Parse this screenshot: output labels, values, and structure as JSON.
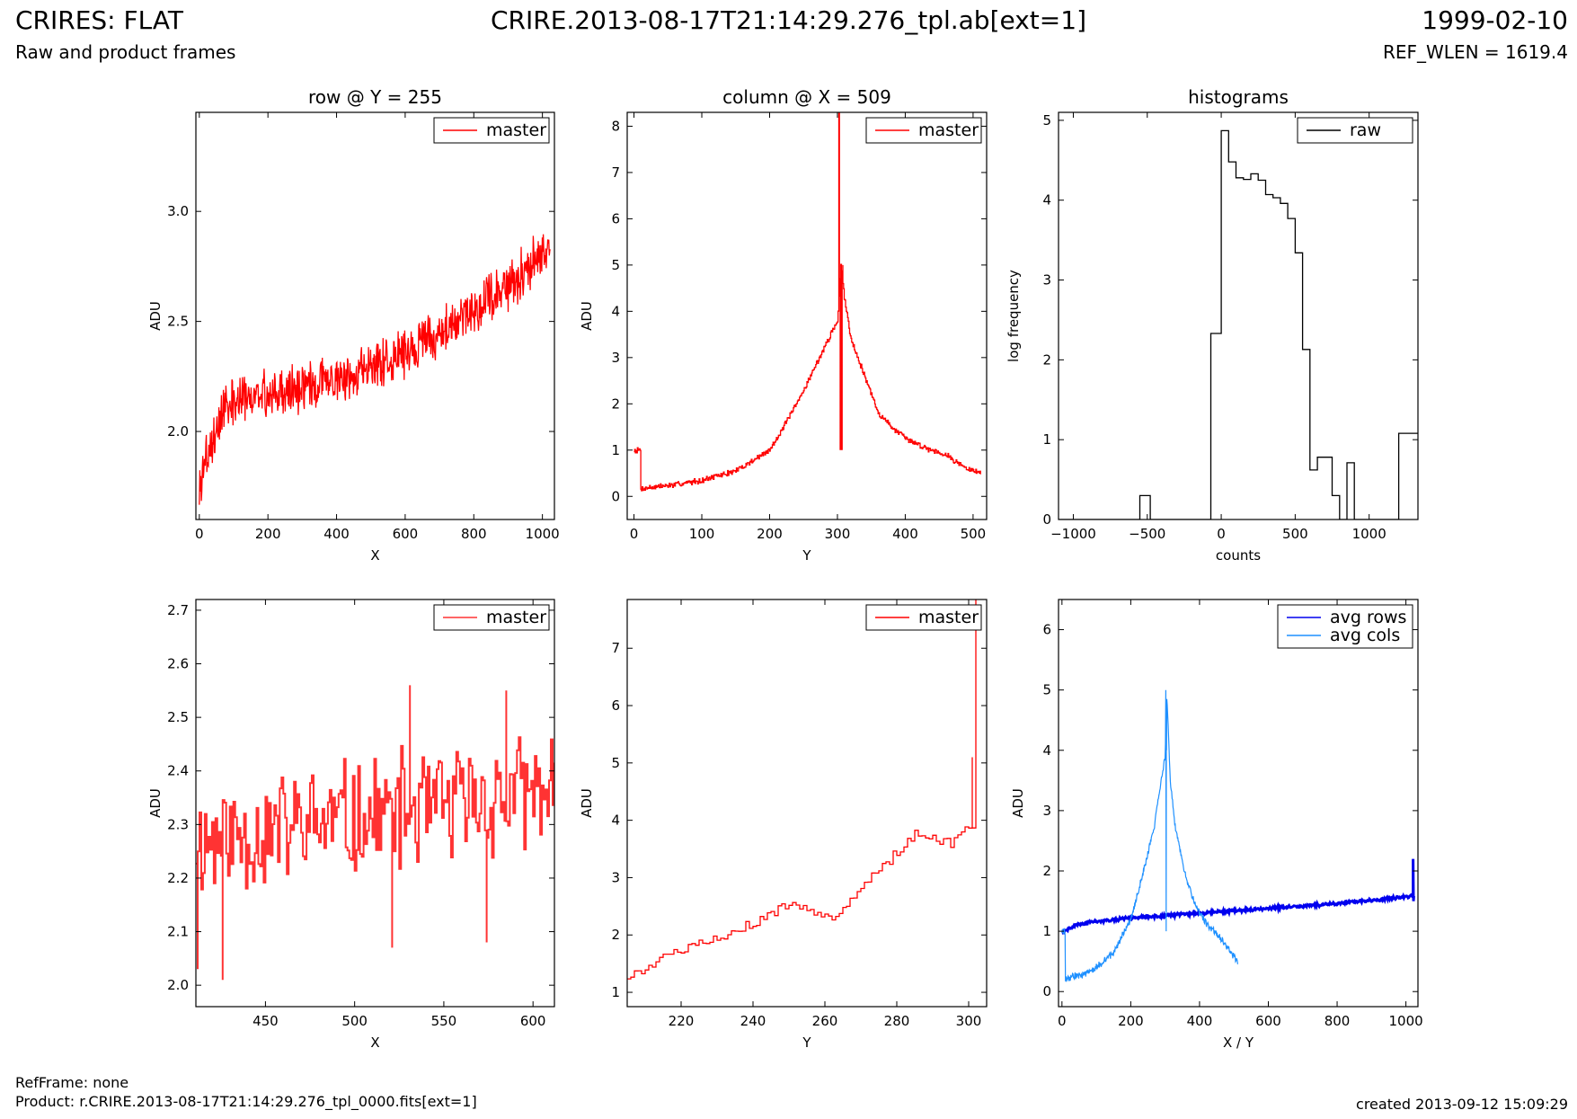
{
  "header": {
    "title": "CRIRES: FLAT",
    "subtitle": "Raw and product frames",
    "file": "CRIRE.2013-08-17T21:14:29.276_tpl.ab[ext=1]",
    "date": "1999-02-10",
    "ref_wlen": "REF_WLEN = 1619.4"
  },
  "footer": {
    "ref_frame": "RefFrame: none",
    "product": "Product: r.CRIRE.2013-08-17T21:14:29.276_tpl_0000.fits[ext=1]",
    "created": "created 2013-09-12 15:09:29"
  },
  "colors": {
    "master": "#ff0000",
    "master_zoom": "#ff3333",
    "raw": "#000000",
    "avg_rows": "#0000ee",
    "avg_cols": "#1e90ff"
  },
  "chart_data": [
    {
      "type": "line",
      "title": "row @ Y = 255",
      "xlabel": "X",
      "ylabel": "ADU",
      "xlim": [
        -10,
        1035
      ],
      "ylim": [
        1.6,
        3.45
      ],
      "xticks": [
        0,
        200,
        400,
        600,
        800,
        1000
      ],
      "yticks": [
        2.0,
        2.5,
        3.0
      ],
      "legend": "top-right",
      "grid": false,
      "series": [
        {
          "name": "master",
          "color": "#ff0000",
          "style": "line",
          "gen": {
            "kind": "noisy",
            "x0": 0,
            "x1": 1023,
            "n": 700,
            "amp": 0.13,
            "seed": 3,
            "pts": [
              [
                0,
                1.72
              ],
              [
                10,
                1.84
              ],
              [
                40,
                1.97
              ],
              [
                80,
                2.12
              ],
              [
                200,
                2.17
              ],
              [
                400,
                2.24
              ],
              [
                600,
                2.35
              ],
              [
                800,
                2.55
              ],
              [
                900,
                2.66
              ],
              [
                1023,
                2.85
              ]
            ]
          }
        }
      ]
    },
    {
      "type": "line",
      "title": "column @ X = 509",
      "xlabel": "Y",
      "ylabel": "ADU",
      "xlim": [
        -10,
        520
      ],
      "ylim": [
        -0.5,
        8.3
      ],
      "xticks": [
        0,
        100,
        200,
        300,
        400,
        500
      ],
      "yticks": [
        0,
        1,
        2,
        3,
        4,
        5,
        6,
        7,
        8
      ],
      "legend": "top-right",
      "grid": false,
      "series": [
        {
          "name": "master",
          "color": "#ff0000",
          "style": "step",
          "gen": {
            "kind": "noisy",
            "x0": 0,
            "x1": 511,
            "n": 512,
            "amp": 0.07,
            "seed": 7,
            "pts": [
              [
                0,
                1
              ],
              [
                9,
                1
              ],
              [
                10,
                0.17
              ],
              [
                60,
                0.25
              ],
              [
                100,
                0.35
              ],
              [
                150,
                0.55
              ],
              [
                200,
                1.0
              ],
              [
                240,
                2.0
              ],
              [
                270,
                2.9
              ],
              [
                290,
                3.5
              ],
              [
                300,
                3.8
              ],
              [
                305,
                5.0
              ],
              [
                310,
                4.3
              ],
              [
                320,
                3.4
              ],
              [
                340,
                2.6
              ],
              [
                360,
                1.8
              ],
              [
                380,
                1.5
              ],
              [
                400,
                1.25
              ],
              [
                430,
                1.05
              ],
              [
                460,
                0.9
              ],
              [
                490,
                0.6
              ],
              [
                511,
                0.5
              ]
            ],
            "spikes": [
              [
                302,
                8.3
              ],
              [
                303,
                8.3
              ],
              [
                304,
                1.0
              ],
              [
                305,
                1.0
              ],
              [
                306,
                1.0
              ],
              [
                307,
                1.0
              ],
              [
                308,
                5.0
              ]
            ]
          }
        }
      ]
    },
    {
      "type": "line",
      "title": "histograms",
      "xlabel": "counts",
      "ylabel": "log frequency",
      "xlim": [
        -1100,
        1330
      ],
      "ylim": [
        0,
        5.1
      ],
      "xticks": [
        -1000,
        -500,
        0,
        500,
        1000
      ],
      "yticks": [
        0,
        1,
        2,
        3,
        4,
        5
      ],
      "legend": "top-right",
      "grid": false,
      "series": [
        {
          "name": "raw",
          "color": "#000000",
          "style": "step",
          "x": [
            -1100,
            -550,
            -480,
            -70,
            0,
            50,
            100,
            150,
            200,
            250,
            300,
            350,
            400,
            450,
            500,
            550,
            600,
            650,
            700,
            750,
            800,
            850,
            900,
            950,
            1000,
            1050,
            1100,
            1150,
            1200,
            1250,
            1300,
            1330
          ],
          "values": [
            0,
            0.3,
            0,
            2.33,
            4.87,
            4.48,
            4.28,
            4.26,
            4.33,
            4.25,
            4.07,
            4.03,
            3.96,
            3.77,
            3.34,
            2.13,
            0.62,
            0.78,
            0.78,
            0.3,
            0,
            0.71,
            0,
            0,
            0,
            0,
            0,
            0,
            1.08,
            1.08,
            1.08,
            1.08
          ]
        }
      ]
    },
    {
      "type": "line",
      "title": "",
      "xlabel": "X",
      "ylabel": "ADU",
      "xlim": [
        411,
        612
      ],
      "ylim": [
        1.96,
        2.72
      ],
      "xticks": [
        450,
        500,
        550,
        600
      ],
      "yticks": [
        2.0,
        2.1,
        2.2,
        2.3,
        2.4,
        2.5,
        2.6,
        2.7
      ],
      "legend": "top-right",
      "grid": false,
      "series": [
        {
          "name": "master",
          "color": "#ff3333",
          "style": "step",
          "gen": {
            "kind": "noisy",
            "x0": 411,
            "x1": 612,
            "n": 202,
            "amp": 0.13,
            "seed": 11,
            "pts": [
              [
                411,
                2.27
              ],
              [
                612,
                2.36
              ]
            ],
            "spikes": [
              [
                412,
                2.03
              ],
              [
                426,
                2.01
              ],
              [
                531,
                2.56
              ],
              [
                585,
                2.55
              ],
              [
                521,
                2.07
              ],
              [
                574,
                2.08
              ]
            ]
          }
        }
      ]
    },
    {
      "type": "line",
      "title": "",
      "xlabel": "Y",
      "ylabel": "ADU",
      "xlim": [
        205,
        305
      ],
      "ylim": [
        0.75,
        7.85
      ],
      "xticks": [
        220,
        240,
        260,
        280,
        300
      ],
      "yticks": [
        1,
        2,
        3,
        4,
        5,
        6,
        7
      ],
      "legend": "top-right",
      "grid": false,
      "series": [
        {
          "name": "master",
          "color": "#ff0000",
          "style": "step",
          "gen": {
            "kind": "noisy",
            "x0": 205,
            "x1": 302,
            "n": 98,
            "amp": 0.1,
            "seed": 5,
            "pts": [
              [
                205,
                1.28
              ],
              [
                215,
                1.6
              ],
              [
                225,
                1.85
              ],
              [
                240,
                2.2
              ],
              [
                250,
                2.55
              ],
              [
                262,
                2.3
              ],
              [
                272,
                2.95
              ],
              [
                285,
                3.75
              ],
              [
                295,
                3.6
              ],
              [
                300,
                3.9
              ]
            ],
            "spikes": [
              [
                301,
                5.1
              ],
              [
                302,
                7.85
              ]
            ]
          }
        }
      ]
    },
    {
      "type": "line",
      "title": "",
      "xlabel": "X / Y",
      "ylabel": "ADU",
      "xlim": [
        -10,
        1035
      ],
      "ylim": [
        -0.25,
        6.5
      ],
      "xticks": [
        0,
        200,
        400,
        600,
        800,
        1000
      ],
      "yticks": [
        0,
        1,
        2,
        3,
        4,
        5,
        6
      ],
      "legend": "top-right",
      "grid": false,
      "series": [
        {
          "name": "avg rows",
          "color": "#0000ee",
          "style": "line",
          "width": 3,
          "gen": {
            "kind": "noisy",
            "x0": 0,
            "x1": 1023,
            "n": 500,
            "amp": 0.03,
            "seed": 2,
            "pts": [
              [
                0,
                0.98
              ],
              [
                40,
                1.1
              ],
              [
                80,
                1.15
              ],
              [
                200,
                1.22
              ],
              [
                400,
                1.3
              ],
              [
                600,
                1.38
              ],
              [
                800,
                1.46
              ],
              [
                1020,
                1.58
              ]
            ],
            "spikes": [
              [
                1021,
                2.2
              ],
              [
                1022,
                1.5
              ]
            ]
          }
        },
        {
          "name": "avg cols",
          "color": "#1e90ff",
          "style": "line",
          "width": 1.2,
          "gen": {
            "kind": "noisy",
            "x0": 0,
            "x1": 511,
            "n": 400,
            "amp": 0.07,
            "seed": 9,
            "pts": [
              [
                0,
                1
              ],
              [
                9,
                1
              ],
              [
                10,
                0.22
              ],
              [
                60,
                0.28
              ],
              [
                100,
                0.4
              ],
              [
                150,
                0.65
              ],
              [
                200,
                1.2
              ],
              [
                240,
                2.05
              ],
              [
                270,
                2.8
              ],
              [
                290,
                3.55
              ],
              [
                300,
                3.9
              ],
              [
                305,
                4.9
              ],
              [
                315,
                3.5
              ],
              [
                330,
                2.7
              ],
              [
                360,
                1.9
              ],
              [
                380,
                1.55
              ],
              [
                400,
                1.3
              ],
              [
                430,
                1.05
              ],
              [
                460,
                0.9
              ],
              [
                490,
                0.65
              ],
              [
                511,
                0.5
              ]
            ],
            "spikes": [
              [
                302,
                5.0
              ],
              [
                303,
                1.0
              ],
              [
                304,
                4.0
              ]
            ]
          }
        }
      ]
    }
  ]
}
